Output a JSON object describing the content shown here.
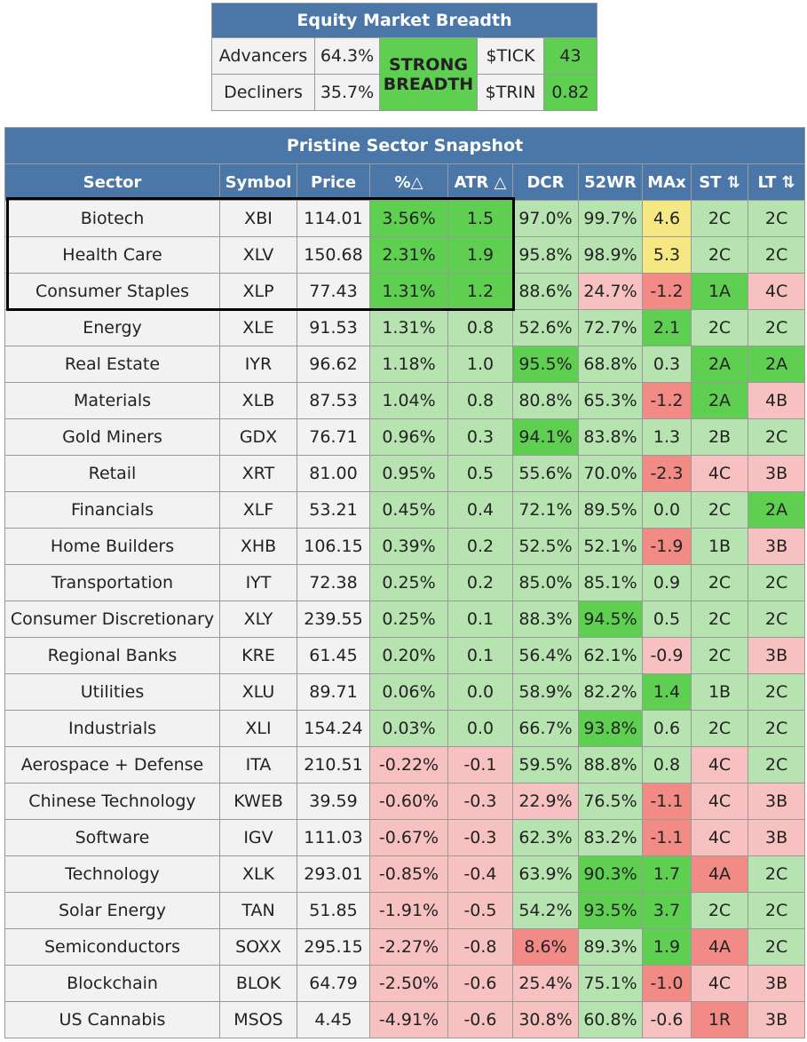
{
  "breadth": {
    "title": "Equity Market Breadth",
    "rows": [
      {
        "label": "Advancers",
        "value": "64.3%",
        "ind_label": "$TICK",
        "ind_value": "43"
      },
      {
        "label": "Decliners",
        "value": "35.7%",
        "ind_label": "$TRIN",
        "ind_value": "0.82"
      }
    ],
    "summary": "STRONG BREADTH"
  },
  "snapshot": {
    "title": "Pristine Sector Snapshot",
    "headers": [
      "Sector",
      "Symbol",
      "Price",
      "%△",
      "ATR △",
      "DCR",
      "52WR",
      "MAx",
      "ST ⇅",
      "LT ⇅"
    ],
    "rows": [
      {
        "sector": "Biotech",
        "symbol": "XBI",
        "price": "114.01",
        "pct": "3.56%",
        "atr": "1.5",
        "dcr": "97.0%",
        "wr": "99.7%",
        "max": "4.6",
        "st": "2C",
        "lt": "2C",
        "c": [
          "dg",
          "dg",
          "lg",
          "lg",
          "yl",
          "lg",
          "lg"
        ]
      },
      {
        "sector": "Health Care",
        "symbol": "XLV",
        "price": "150.68",
        "pct": "2.31%",
        "atr": "1.9",
        "dcr": "95.8%",
        "wr": "98.9%",
        "max": "5.3",
        "st": "2C",
        "lt": "2C",
        "c": [
          "dg",
          "dg",
          "lg",
          "lg",
          "yl",
          "lg",
          "lg"
        ]
      },
      {
        "sector": "Consumer Staples",
        "symbol": "XLP",
        "price": "77.43",
        "pct": "1.31%",
        "atr": "1.2",
        "dcr": "88.6%",
        "wr": "24.7%",
        "max": "-1.2",
        "st": "1A",
        "lt": "4C",
        "c": [
          "dg",
          "dg",
          "lg",
          "lr",
          "dr",
          "dg",
          "lr"
        ]
      },
      {
        "sector": "Energy",
        "symbol": "XLE",
        "price": "91.53",
        "pct": "1.31%",
        "atr": "0.8",
        "dcr": "52.6%",
        "wr": "72.7%",
        "max": "2.1",
        "st": "2C",
        "lt": "2C",
        "c": [
          "lg",
          "lg",
          "lg",
          "lg",
          "dg",
          "lg",
          "lg"
        ]
      },
      {
        "sector": "Real Estate",
        "symbol": "IYR",
        "price": "96.62",
        "pct": "1.18%",
        "atr": "1.0",
        "dcr": "95.5%",
        "wr": "68.8%",
        "max": "0.3",
        "st": "2A",
        "lt": "2A",
        "c": [
          "lg",
          "lg",
          "dg",
          "lg",
          "lg",
          "dg",
          "dg"
        ]
      },
      {
        "sector": "Materials",
        "symbol": "XLB",
        "price": "87.53",
        "pct": "1.04%",
        "atr": "0.8",
        "dcr": "80.8%",
        "wr": "65.3%",
        "max": "-1.2",
        "st": "2A",
        "lt": "4B",
        "c": [
          "lg",
          "lg",
          "lg",
          "lg",
          "dr",
          "dg",
          "lr"
        ]
      },
      {
        "sector": "Gold Miners",
        "symbol": "GDX",
        "price": "76.71",
        "pct": "0.96%",
        "atr": "0.3",
        "dcr": "94.1%",
        "wr": "83.8%",
        "max": "1.3",
        "st": "2B",
        "lt": "2C",
        "c": [
          "lg",
          "lg",
          "dg",
          "lg",
          "lg",
          "lg",
          "lg"
        ]
      },
      {
        "sector": "Retail",
        "symbol": "XRT",
        "price": "81.00",
        "pct": "0.95%",
        "atr": "0.5",
        "dcr": "55.6%",
        "wr": "70.0%",
        "max": "-2.3",
        "st": "4C",
        "lt": "3B",
        "c": [
          "lg",
          "lg",
          "lg",
          "lg",
          "dr",
          "lr",
          "lr"
        ]
      },
      {
        "sector": "Financials",
        "symbol": "XLF",
        "price": "53.21",
        "pct": "0.45%",
        "atr": "0.4",
        "dcr": "72.1%",
        "wr": "89.5%",
        "max": "0.0",
        "st": "2C",
        "lt": "2A",
        "c": [
          "lg",
          "lg",
          "lg",
          "lg",
          "lg",
          "lg",
          "dg"
        ]
      },
      {
        "sector": "Home Builders",
        "symbol": "XHB",
        "price": "106.15",
        "pct": "0.39%",
        "atr": "0.2",
        "dcr": "52.5%",
        "wr": "52.1%",
        "max": "-1.9",
        "st": "1B",
        "lt": "3B",
        "c": [
          "lg",
          "lg",
          "lg",
          "lg",
          "dr",
          "lg",
          "lr"
        ]
      },
      {
        "sector": "Transportation",
        "symbol": "IYT",
        "price": "72.38",
        "pct": "0.25%",
        "atr": "0.2",
        "dcr": "85.0%",
        "wr": "85.1%",
        "max": "0.9",
        "st": "2C",
        "lt": "2C",
        "c": [
          "lg",
          "lg",
          "lg",
          "lg",
          "lg",
          "lg",
          "lg"
        ]
      },
      {
        "sector": "Consumer Discretionary",
        "symbol": "XLY",
        "price": "239.55",
        "pct": "0.25%",
        "atr": "0.1",
        "dcr": "88.3%",
        "wr": "94.5%",
        "max": "0.5",
        "st": "2C",
        "lt": "2C",
        "c": [
          "lg",
          "lg",
          "lg",
          "dg",
          "lg",
          "lg",
          "lg"
        ]
      },
      {
        "sector": "Regional Banks",
        "symbol": "KRE",
        "price": "61.45",
        "pct": "0.20%",
        "atr": "0.1",
        "dcr": "56.4%",
        "wr": "62.1%",
        "max": "-0.9",
        "st": "2C",
        "lt": "3B",
        "c": [
          "lg",
          "lg",
          "lg",
          "lg",
          "lr",
          "lg",
          "lr"
        ]
      },
      {
        "sector": "Utilities",
        "symbol": "XLU",
        "price": "89.71",
        "pct": "0.06%",
        "atr": "0.0",
        "dcr": "58.9%",
        "wr": "82.2%",
        "max": "1.4",
        "st": "1B",
        "lt": "2C",
        "c": [
          "lg",
          "lg",
          "lg",
          "lg",
          "dg",
          "lg",
          "lg"
        ]
      },
      {
        "sector": "Industrials",
        "symbol": "XLI",
        "price": "154.24",
        "pct": "0.03%",
        "atr": "0.0",
        "dcr": "66.7%",
        "wr": "93.8%",
        "max": "0.6",
        "st": "2C",
        "lt": "2C",
        "c": [
          "lg",
          "lg",
          "lg",
          "dg",
          "lg",
          "lg",
          "lg"
        ]
      },
      {
        "sector": "Aerospace + Defense",
        "symbol": "ITA",
        "price": "210.51",
        "pct": "-0.22%",
        "atr": "-0.1",
        "dcr": "59.5%",
        "wr": "88.8%",
        "max": "0.8",
        "st": "4C",
        "lt": "2C",
        "c": [
          "lr",
          "lr",
          "lg",
          "lg",
          "lg",
          "lr",
          "lg"
        ]
      },
      {
        "sector": "Chinese Technology",
        "symbol": "KWEB",
        "price": "39.59",
        "pct": "-0.60%",
        "atr": "-0.3",
        "dcr": "22.9%",
        "wr": "76.5%",
        "max": "-1.1",
        "st": "4C",
        "lt": "3B",
        "c": [
          "lr",
          "lr",
          "lr",
          "lg",
          "dr",
          "lr",
          "lr"
        ]
      },
      {
        "sector": "Software",
        "symbol": "IGV",
        "price": "111.03",
        "pct": "-0.67%",
        "atr": "-0.3",
        "dcr": "62.3%",
        "wr": "83.2%",
        "max": "-1.1",
        "st": "4C",
        "lt": "3B",
        "c": [
          "lr",
          "lr",
          "lg",
          "lg",
          "dr",
          "lr",
          "lr"
        ]
      },
      {
        "sector": "Technology",
        "symbol": "XLK",
        "price": "293.01",
        "pct": "-0.85%",
        "atr": "-0.4",
        "dcr": "63.9%",
        "wr": "90.3%",
        "max": "1.7",
        "st": "4A",
        "lt": "2C",
        "c": [
          "lr",
          "lr",
          "lg",
          "dg",
          "dg",
          "dr",
          "lg"
        ]
      },
      {
        "sector": "Solar Energy",
        "symbol": "TAN",
        "price": "51.85",
        "pct": "-1.91%",
        "atr": "-0.5",
        "dcr": "54.2%",
        "wr": "93.5%",
        "max": "3.7",
        "st": "2C",
        "lt": "2C",
        "c": [
          "lr",
          "lr",
          "lg",
          "dg",
          "dg",
          "lg",
          "lg"
        ]
      },
      {
        "sector": "Semiconductors",
        "symbol": "SOXX",
        "price": "295.15",
        "pct": "-2.27%",
        "atr": "-0.8",
        "dcr": "8.6%",
        "wr": "89.3%",
        "max": "1.9",
        "st": "4A",
        "lt": "2C",
        "c": [
          "lr",
          "lr",
          "dr",
          "lg",
          "dg",
          "dr",
          "lg"
        ]
      },
      {
        "sector": "Blockchain",
        "symbol": "BLOK",
        "price": "64.79",
        "pct": "-2.50%",
        "atr": "-0.6",
        "dcr": "25.4%",
        "wr": "75.1%",
        "max": "-1.0",
        "st": "4C",
        "lt": "3B",
        "c": [
          "lr",
          "lr",
          "lr",
          "lg",
          "dr",
          "lr",
          "lr"
        ]
      },
      {
        "sector": "US Cannabis",
        "symbol": "MSOS",
        "price": "4.45",
        "pct": "-4.91%",
        "atr": "-0.6",
        "dcr": "30.8%",
        "wr": "60.8%",
        "max": "-0.6",
        "st": "1R",
        "lt": "3B",
        "c": [
          "lr",
          "lr",
          "lr",
          "lg",
          "lr",
          "dr",
          "lr"
        ]
      }
    ]
  }
}
